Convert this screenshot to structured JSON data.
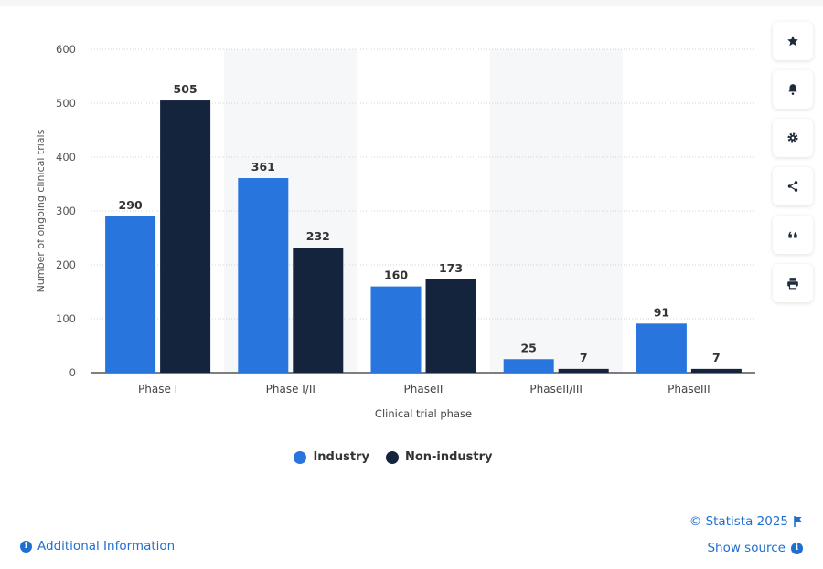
{
  "chart_data": {
    "type": "bar",
    "categories": [
      "Phase I",
      "Phase I/II",
      "PhaseII",
      "PhaseII/III",
      "PhaseIII"
    ],
    "series": [
      {
        "name": "Industry",
        "values": [
          290,
          361,
          160,
          25,
          91
        ],
        "color": "#2876dd"
      },
      {
        "name": "Non-industry",
        "values": [
          505,
          232,
          173,
          7,
          7
        ],
        "color": "#14243d"
      }
    ],
    "xlabel": "Clinical trial phase",
    "ylabel": "Number of ongoing clinical trials",
    "ylim": [
      0,
      600
    ],
    "yticks": [
      0,
      100,
      200,
      300,
      400,
      500,
      600
    ],
    "grid": true,
    "legend_position": "bottom"
  },
  "tools": [
    {
      "name": "star-icon"
    },
    {
      "name": "bell-icon"
    },
    {
      "name": "gear-icon"
    },
    {
      "name": "share-icon"
    },
    {
      "name": "quote-icon"
    },
    {
      "name": "print-icon"
    }
  ],
  "footer": {
    "additional_info": "Additional Information",
    "credit": "© Statista 2025",
    "show_source": "Show source",
    "info_glyph": "i"
  }
}
